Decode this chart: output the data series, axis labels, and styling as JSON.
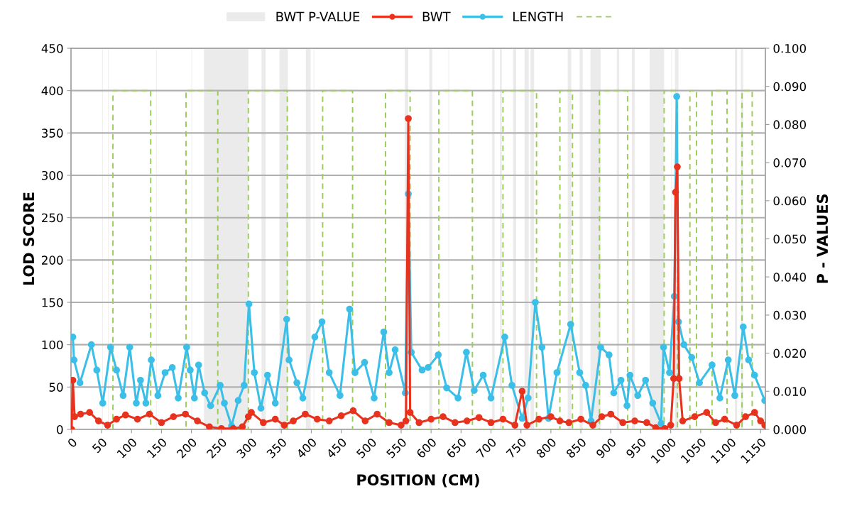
{
  "chart_data": {
    "type": "line",
    "xlabel": "POSITION (CM)",
    "ylabel": "LOD SCORE",
    "y2label": "P - VALUES",
    "xlim": [
      -1,
      1158
    ],
    "xticks": [
      0,
      50,
      100,
      150,
      200,
      250,
      300,
      350,
      400,
      450,
      500,
      550,
      600,
      650,
      700,
      750,
      800,
      850,
      900,
      950,
      1000,
      1050,
      1100,
      1150
    ],
    "ylim": [
      0,
      450
    ],
    "yticks": [
      0,
      50,
      100,
      150,
      200,
      250,
      300,
      350,
      400,
      450
    ],
    "y2lim": [
      0,
      0.1
    ],
    "y2ticks": [
      {
        "value": 0,
        "label": "0.000"
      },
      {
        "value": 0.01,
        "label": "0.010"
      },
      {
        "value": 0.02,
        "label": "0.020"
      },
      {
        "value": 0.03,
        "label": "0.030"
      },
      {
        "value": 0.04,
        "label": "0.040"
      },
      {
        "value": 0.05,
        "label": "0.050"
      },
      {
        "value": 0.06,
        "label": "0.060"
      },
      {
        "value": 0.07,
        "label": "0.070"
      },
      {
        "value": 0.08,
        "label": "0.080"
      },
      {
        "value": 0.09,
        "label": "0.090"
      },
      {
        "value": 0.1,
        "label": "0.100"
      }
    ],
    "grid": "y",
    "legend": "top",
    "series": [
      {
        "name": "BWT P-VALUE",
        "type": "area",
        "axis": "y2",
        "color": "#ebebeb",
        "x": [
          51,
          51,
          52,
          52,
          61,
          61,
          62,
          62,
          141,
          141,
          142,
          142,
          200,
          200,
          201,
          201,
          221,
          221,
          295,
          295,
          317,
          317,
          324,
          324,
          347,
          347,
          361,
          361,
          391,
          391,
          399,
          399,
          404,
          404,
          405,
          405,
          556,
          556,
          562,
          562,
          597,
          597,
          602,
          602,
          629,
          629,
          630,
          630,
          702,
          702,
          706,
          706,
          715,
          715,
          718,
          718,
          737,
          737,
          742,
          742,
          756,
          756,
          763,
          763,
          766,
          766,
          772,
          772,
          828,
          828,
          834,
          834,
          848,
          848,
          853,
          853,
          866,
          866,
          883,
          883,
          910,
          910,
          914,
          914,
          935,
          935,
          940,
          940,
          965,
          965,
          989,
          989,
          1001,
          1001,
          1002,
          1002,
          1007,
          1007,
          1013,
          1013,
          1107,
          1107,
          1111,
          1111,
          1117,
          1117,
          1121,
          1121
        ],
        "values": [
          0,
          0.1,
          0.1,
          0,
          0,
          0.1,
          0.1,
          0,
          0,
          0.1,
          0.1,
          0,
          0,
          0.1,
          0.1,
          0,
          0,
          0.1,
          0.1,
          0,
          0,
          0.1,
          0.1,
          0,
          0,
          0.1,
          0.1,
          0,
          0,
          0.1,
          0.1,
          0,
          0,
          0.1,
          0.1,
          0,
          0,
          0.1,
          0.1,
          0,
          0,
          0.1,
          0.1,
          0,
          0,
          0.1,
          0.1,
          0,
          0,
          0.1,
          0.1,
          0,
          0,
          0.1,
          0.1,
          0,
          0,
          0.1,
          0.1,
          0,
          0,
          0.1,
          0.1,
          0,
          0,
          0.1,
          0.1,
          0,
          0,
          0.1,
          0.1,
          0,
          0,
          0.1,
          0.1,
          0,
          0,
          0.1,
          0.1,
          0,
          0,
          0.1,
          0.1,
          0,
          0,
          0.1,
          0.1,
          0,
          0,
          0.1,
          0.1,
          0,
          0,
          0.1,
          0.1,
          0,
          0,
          0.1,
          0.1,
          0,
          0,
          0.1,
          0.1,
          0,
          0,
          0.1,
          0.1,
          0
        ]
      },
      {
        "name": "BWT",
        "color": "#e8321e",
        "marker": "circle",
        "line_style": "solid",
        "x": [
          0,
          2,
          5,
          15,
          30,
          45,
          60,
          75,
          90,
          110,
          130,
          150,
          170,
          190,
          210,
          230,
          250,
          270,
          285,
          295,
          300,
          320,
          340,
          355,
          370,
          390,
          410,
          430,
          450,
          470,
          490,
          510,
          530,
          550,
          558,
          562,
          565,
          580,
          600,
          620,
          640,
          660,
          680,
          700,
          720,
          740,
          752,
          760,
          780,
          800,
          815,
          830,
          850,
          870,
          885,
          900,
          920,
          940,
          960,
          975,
          990,
          1000,
          1005,
          1008,
          1011,
          1014,
          1020,
          1040,
          1060,
          1075,
          1090,
          1110,
          1125,
          1140,
          1150,
          1157
        ],
        "values": [
          0,
          58,
          15,
          18,
          20,
          10,
          5,
          12,
          17,
          12,
          18,
          8,
          15,
          18,
          10,
          3,
          1,
          1,
          3,
          15,
          20,
          8,
          12,
          5,
          10,
          18,
          12,
          10,
          16,
          22,
          10,
          18,
          8,
          5,
          10,
          367,
          20,
          8,
          12,
          15,
          8,
          10,
          14,
          8,
          12,
          5,
          45,
          5,
          12,
          15,
          10,
          8,
          12,
          5,
          15,
          18,
          8,
          10,
          8,
          2,
          1,
          5,
          60,
          280,
          310,
          60,
          10,
          15,
          20,
          8,
          12,
          5,
          15,
          20,
          10,
          5
        ]
      },
      {
        "name": "LENGTH",
        "color": "#3bbfe8",
        "marker": "circle",
        "line_style": "solid",
        "x": [
          2,
          4,
          14,
          33,
          42,
          52,
          65,
          75,
          86,
          97,
          108,
          115,
          124,
          133,
          144,
          156,
          168,
          178,
          192,
          198,
          205,
          212,
          222,
          232,
          248,
          255,
          267,
          278,
          288,
          296,
          305,
          316,
          327,
          340,
          359,
          363,
          376,
          386,
          406,
          418,
          430,
          448,
          464,
          473,
          489,
          505,
          521,
          530,
          540,
          557,
          562,
          567,
          585,
          595,
          612,
          626,
          645,
          659,
          672,
          687,
          700,
          723,
          735,
          752,
          762,
          774,
          785,
          796,
          810,
          833,
          848,
          858,
          867,
          883,
          897,
          905,
          917,
          927,
          932,
          945,
          958,
          970,
          984,
          988,
          998,
          1006,
          1010,
          1013,
          1022,
          1035,
          1048,
          1069,
          1082,
          1096,
          1107,
          1121,
          1130,
          1140,
          1157
        ],
        "values": [
          109,
          82,
          55,
          100,
          70,
          31,
          97,
          70,
          40,
          97,
          31,
          58,
          31,
          82,
          40,
          67,
          73,
          37,
          97,
          70,
          37,
          76,
          43,
          28,
          52,
          31,
          4,
          34,
          52,
          148,
          67,
          25,
          64,
          31,
          130,
          82,
          55,
          37,
          109,
          127,
          67,
          40,
          142,
          67,
          79,
          37,
          115,
          67,
          94,
          43,
          278,
          91,
          70,
          73,
          88,
          49,
          37,
          91,
          46,
          64,
          37,
          109,
          52,
          13,
          37,
          150,
          97,
          13,
          67,
          124,
          67,
          52,
          10,
          97,
          88,
          43,
          58,
          28,
          64,
          40,
          58,
          31,
          7,
          97,
          67,
          157,
          393,
          127,
          100,
          85,
          55,
          76,
          37,
          82,
          40,
          121,
          82,
          64,
          34
        ]
      },
      {
        "color": "#9acd5a",
        "marker": "none",
        "line_style": "dashed",
        "x": [
          69,
          69,
          132,
          132,
          191,
          191,
          244,
          244,
          295,
          295,
          360,
          360,
          419,
          419,
          469,
          469,
          524,
          524,
          565,
          565,
          613,
          613,
          669,
          669,
          720,
          720,
          776,
          776,
          815,
          815,
          836,
          836,
          881,
          881,
          928,
          928,
          989,
          989,
          1011,
          1011,
          1032,
          1032,
          1043,
          1043,
          1069,
          1069,
          1094,
          1094,
          1119,
          1119,
          1136,
          1136
        ],
        "values": [
          0,
          400,
          400,
          0,
          0,
          400,
          400,
          0,
          0,
          400,
          400,
          0,
          0,
          400,
          400,
          0,
          0,
          400,
          400,
          0,
          0,
          400,
          400,
          0,
          0,
          400,
          400,
          0,
          0,
          400,
          400,
          0,
          0,
          400,
          400,
          0,
          0,
          400,
          400,
          0,
          0,
          400,
          400,
          0,
          0,
          400,
          400,
          0,
          0,
          400,
          400,
          0
        ]
      }
    ]
  }
}
